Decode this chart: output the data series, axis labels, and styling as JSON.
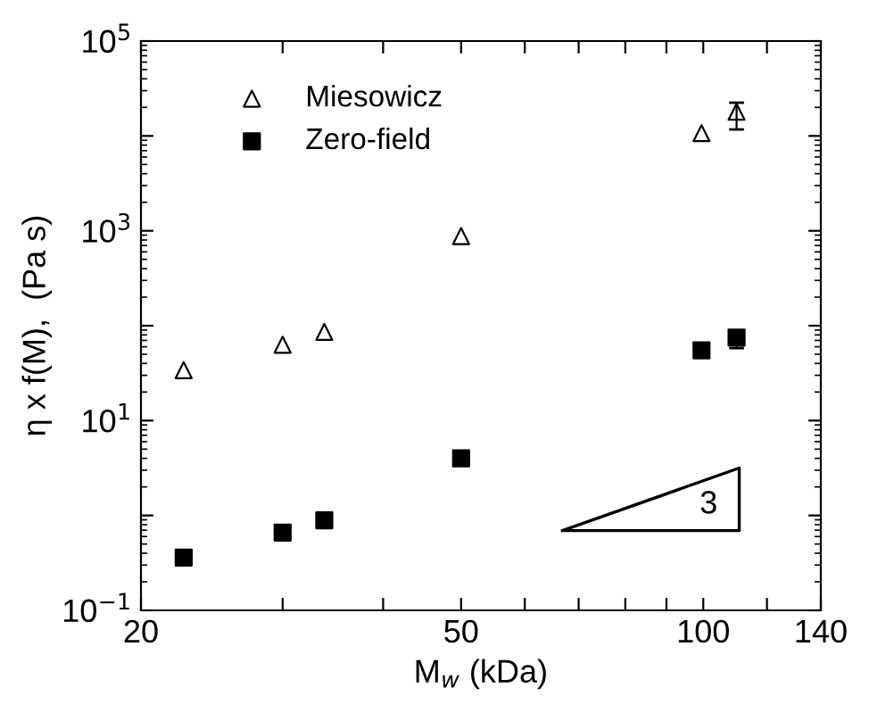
{
  "chart_data": {
    "type": "scatter",
    "xlabel": "M$_{w}$ (kDa)",
    "ylabel": "η x f(M),  (Pa s)",
    "log": "xy",
    "xlim": [
      20,
      140
    ],
    "xticks": [
      20,
      {
        "value": 30,
        "label": null
      },
      {
        "value": 40,
        "label": null
      },
      50,
      {
        "value": 60,
        "label": null
      },
      {
        "value": 70,
        "label": null
      },
      {
        "value": 80,
        "label": null
      },
      {
        "value": 90,
        "label": null
      },
      100,
      {
        "value": 120,
        "label": null
      },
      140
    ],
    "ylim": [
      0.1,
      100000
    ],
    "yticks": [
      {
        "value": 0.1,
        "label": "10$^{−1}$"
      },
      {
        "value": 1,
        "label": null
      },
      {
        "value": 10,
        "label": "10$^{1}$"
      },
      {
        "value": 100,
        "label": null
      },
      {
        "value": 1000,
        "label": "10$^{3}$"
      },
      {
        "value": 10000,
        "label": null
      },
      {
        "value": 100000,
        "label": "10$^{5}$"
      }
    ],
    "legend": "top left",
    "grid": false,
    "series": [
      {
        "name": "Miesowicz",
        "color": "#000000",
        "marker": "triangle",
        "x": [
          22.6,
          30,
          33.8,
          50,
          99.5,
          110
        ],
        "values": [
          34,
          63,
          86,
          880,
          10700,
          18000
        ],
        "errors": [
          null,
          null,
          null,
          null,
          null,
          [
            11700,
            22400
          ]
        ]
      },
      {
        "name": "Zero-field",
        "color": "#000000",
        "marker": "square",
        "x": [
          22.6,
          30,
          33.8,
          50,
          99.5,
          110
        ],
        "values": [
          0.36,
          0.66,
          0.89,
          4.0,
          55,
          75
        ],
        "errors": [
          null,
          null,
          null,
          null,
          null,
          [
            58,
            80
          ]
        ]
      }
    ],
    "annotations": [
      "3"
    ]
  }
}
